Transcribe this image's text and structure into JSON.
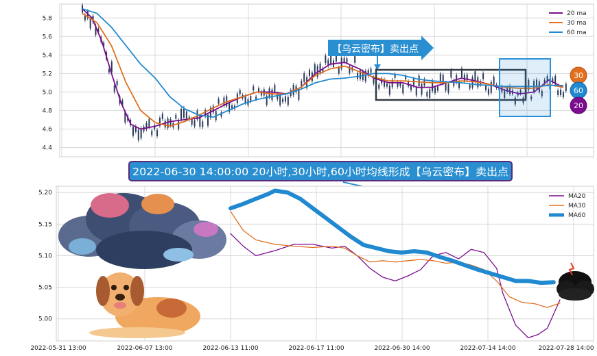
{
  "colors": {
    "ma20": "#7b0d8e",
    "ma30": "#e07020",
    "ma60": "#2089d0",
    "candle": "#2a3a5a",
    "box_dark": "#333a44",
    "box_blue": "#2a90d8",
    "annotation_bg": "#2a8fd0",
    "grid": "#d8d8d8"
  },
  "top_chart": {
    "legend": [
      "20 ma",
      "30 ma",
      "60 ma"
    ],
    "arrow_label": "【乌云密布】卖出点",
    "badges": [
      "30",
      "60",
      "20"
    ]
  },
  "headline": "2022-06-30 14:00:00 20小时,30小时,60小时均线形成【乌云密布】卖出点",
  "illustrations": [
    "cloud-icon",
    "dog-icon",
    "storm-cloud-icon"
  ],
  "chart_data": [
    {
      "type": "line",
      "panel": "top",
      "ylim": [
        4.3,
        5.95
      ],
      "y_ticks": [
        4.4,
        4.6,
        4.8,
        5.0,
        5.2,
        5.4,
        5.6,
        5.8
      ],
      "x_index_range": [
        0,
        100
      ],
      "series": [
        {
          "name": "20 ma",
          "points": [
            [
              0,
              5.9
            ],
            [
              2,
              5.8
            ],
            [
              4,
              5.55
            ],
            [
              6,
              5.2
            ],
            [
              8,
              4.88
            ],
            [
              10,
              4.65
            ],
            [
              12,
              4.6
            ],
            [
              15,
              4.63
            ],
            [
              18,
              4.68
            ],
            [
              21,
              4.7
            ],
            [
              24,
              4.72
            ],
            [
              27,
              4.8
            ],
            [
              30,
              4.88
            ],
            [
              33,
              4.95
            ],
            [
              36,
              5.0
            ],
            [
              39,
              5.0
            ],
            [
              42,
              4.98
            ],
            [
              45,
              5.05
            ],
            [
              48,
              5.2
            ],
            [
              51,
              5.3
            ],
            [
              54,
              5.32
            ],
            [
              57,
              5.25
            ],
            [
              60,
              5.15
            ],
            [
              63,
              5.1
            ],
            [
              66,
              5.1
            ],
            [
              69,
              5.05
            ],
            [
              72,
              5.05
            ],
            [
              75,
              5.1
            ],
            [
              78,
              5.15
            ],
            [
              81,
              5.12
            ],
            [
              84,
              5.08
            ],
            [
              87,
              5.02
            ],
            [
              90,
              4.98
            ],
            [
              93,
              5.0
            ],
            [
              96,
              5.13
            ],
            [
              99,
              5.05
            ]
          ]
        },
        {
          "name": "30 ma",
          "points": [
            [
              0,
              5.85
            ],
            [
              3,
              5.75
            ],
            [
              6,
              5.5
            ],
            [
              9,
              5.1
            ],
            [
              12,
              4.8
            ],
            [
              15,
              4.67
            ],
            [
              18,
              4.63
            ],
            [
              21,
              4.68
            ],
            [
              24,
              4.75
            ],
            [
              27,
              4.83
            ],
            [
              30,
              4.9
            ],
            [
              33,
              4.95
            ],
            [
              36,
              5.0
            ],
            [
              39,
              4.98
            ],
            [
              42,
              4.98
            ],
            [
              45,
              5.05
            ],
            [
              48,
              5.18
            ],
            [
              51,
              5.25
            ],
            [
              54,
              5.28
            ],
            [
              57,
              5.22
            ],
            [
              60,
              5.16
            ],
            [
              63,
              5.12
            ],
            [
              66,
              5.12
            ],
            [
              69,
              5.11
            ],
            [
              72,
              5.1
            ],
            [
              75,
              5.1
            ],
            [
              78,
              5.12
            ],
            [
              81,
              5.11
            ],
            [
              84,
              5.08
            ],
            [
              87,
              5.05
            ],
            [
              90,
              5.04
            ],
            [
              93,
              5.04
            ],
            [
              96,
              5.08
            ],
            [
              99,
              5.05
            ]
          ]
        },
        {
          "name": "60 ma",
          "points": [
            [
              0,
              5.9
            ],
            [
              3,
              5.85
            ],
            [
              6,
              5.7
            ],
            [
              9,
              5.5
            ],
            [
              12,
              5.3
            ],
            [
              15,
              5.15
            ],
            [
              18,
              4.95
            ],
            [
              21,
              4.82
            ],
            [
              24,
              4.75
            ],
            [
              27,
              4.73
            ],
            [
              30,
              4.8
            ],
            [
              33,
              4.87
            ],
            [
              36,
              4.92
            ],
            [
              39,
              4.95
            ],
            [
              42,
              4.98
            ],
            [
              45,
              5.03
            ],
            [
              48,
              5.1
            ],
            [
              51,
              5.14
            ],
            [
              54,
              5.15
            ],
            [
              57,
              5.17
            ],
            [
              60,
              5.2
            ],
            [
              63,
              5.2
            ],
            [
              66,
              5.18
            ],
            [
              69,
              5.14
            ],
            [
              72,
              5.12
            ],
            [
              75,
              5.11
            ],
            [
              78,
              5.1
            ],
            [
              81,
              5.08
            ],
            [
              84,
              5.07
            ],
            [
              87,
              5.06
            ],
            [
              90,
              5.06
            ],
            [
              93,
              5.06
            ],
            [
              96,
              5.07
            ],
            [
              99,
              5.07
            ]
          ]
        }
      ]
    },
    {
      "type": "line",
      "panel": "bottom",
      "ylim": [
        4.965,
        5.21
      ],
      "y_ticks": [
        5.0,
        5.05,
        5.1,
        5.15,
        5.2
      ],
      "x_tick_labels": [
        "2022-05-31 13:00",
        "2022-06-07 13:00",
        "2022-06-13 11:00",
        "2022-06-17 11:00",
        "2022-06-30 14:00",
        "2022-07-14 14:00",
        "2022-07-28 14:00"
      ],
      "series": [
        {
          "name": "MA20",
          "points": [
            [
              0,
              5.135
            ],
            [
              4,
              5.115
            ],
            [
              8,
              5.1
            ],
            [
              14,
              5.108
            ],
            [
              20,
              5.118
            ],
            [
              26,
              5.118
            ],
            [
              32,
              5.112
            ],
            [
              36,
              5.115
            ],
            [
              40,
              5.1
            ],
            [
              44,
              5.08
            ],
            [
              48,
              5.066
            ],
            [
              52,
              5.06
            ],
            [
              56,
              5.068
            ],
            [
              60,
              5.078
            ],
            [
              64,
              5.1
            ],
            [
              68,
              5.105
            ],
            [
              72,
              5.095
            ],
            [
              76,
              5.11
            ],
            [
              80,
              5.105
            ],
            [
              84,
              5.08
            ],
            [
              86,
              5.04
            ],
            [
              90,
              4.99
            ],
            [
              94,
              4.97
            ],
            [
              97,
              4.975
            ],
            [
              100,
              4.985
            ],
            [
              104,
              5.03
            ]
          ]
        },
        {
          "name": "MA30",
          "points": [
            [
              0,
              5.17
            ],
            [
              4,
              5.14
            ],
            [
              8,
              5.125
            ],
            [
              14,
              5.118
            ],
            [
              20,
              5.115
            ],
            [
              26,
              5.113
            ],
            [
              32,
              5.115
            ],
            [
              36,
              5.112
            ],
            [
              40,
              5.1
            ],
            [
              44,
              5.09
            ],
            [
              48,
              5.092
            ],
            [
              52,
              5.09
            ],
            [
              56,
              5.092
            ],
            [
              60,
              5.094
            ],
            [
              64,
              5.092
            ],
            [
              68,
              5.088
            ],
            [
              72,
              5.09
            ],
            [
              76,
              5.085
            ],
            [
              80,
              5.078
            ],
            [
              84,
              5.06
            ],
            [
              88,
              5.035
            ],
            [
              92,
              5.026
            ],
            [
              96,
              5.024
            ],
            [
              100,
              5.018
            ],
            [
              104,
              5.025
            ]
          ]
        },
        {
          "name": "MA60",
          "points": [
            [
              0,
              5.175
            ],
            [
              4,
              5.182
            ],
            [
              8,
              5.19
            ],
            [
              12,
              5.198
            ],
            [
              14,
              5.203
            ],
            [
              18,
              5.2
            ],
            [
              22,
              5.19
            ],
            [
              26,
              5.175
            ],
            [
              30,
              5.16
            ],
            [
              34,
              5.145
            ],
            [
              38,
              5.13
            ],
            [
              42,
              5.117
            ],
            [
              46,
              5.112
            ],
            [
              50,
              5.107
            ],
            [
              54,
              5.105
            ],
            [
              58,
              5.107
            ],
            [
              62,
              5.105
            ],
            [
              66,
              5.098
            ],
            [
              70,
              5.092
            ],
            [
              74,
              5.085
            ],
            [
              78,
              5.078
            ],
            [
              82,
              5.072
            ],
            [
              86,
              5.066
            ],
            [
              90,
              5.06
            ],
            [
              94,
              5.06
            ],
            [
              98,
              5.057
            ],
            [
              102,
              5.058
            ]
          ]
        }
      ],
      "legend": [
        "MA20",
        "MA30",
        "MA60"
      ]
    }
  ]
}
